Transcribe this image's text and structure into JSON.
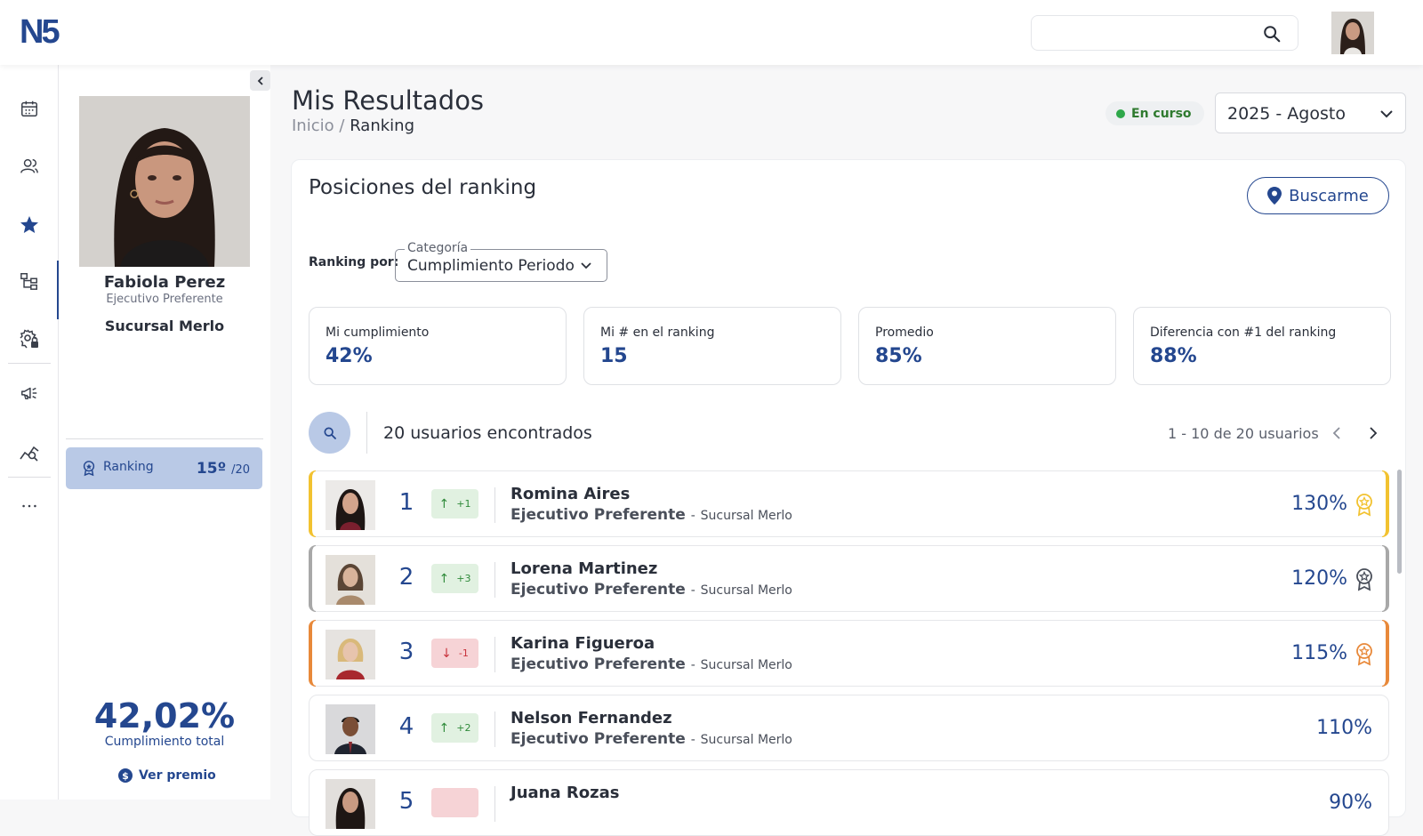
{
  "app": {
    "logo": "N5"
  },
  "header": {
    "search_placeholder": ""
  },
  "profile": {
    "name": "Fabiola Perez",
    "role": "Ejecutivo Preferente",
    "branch": "Sucursal Merlo",
    "ranking_label": "Ranking",
    "ranking_position": "15º",
    "ranking_total": "/20",
    "total_pct": "42,02%",
    "total_label": "Cumplimiento total",
    "prize_link": "Ver premio"
  },
  "sidebar": {
    "icons": [
      "calendar-icon",
      "users-icon",
      "star-icon",
      "org-chart-icon",
      "settings-lock-icon",
      "megaphone-icon",
      "chart-search-icon",
      "more-icon"
    ],
    "active": "star-icon"
  },
  "page": {
    "title": "Mis Resultados",
    "breadcrumb_home": "Inicio",
    "breadcrumb_sep": "/",
    "breadcrumb_current": "Ranking",
    "status": "En curso",
    "period": "2025 - Agosto"
  },
  "card": {
    "title": "Posiciones del ranking",
    "find_me_button": "Buscarme",
    "ranking_by_label": "Ranking por:",
    "category_legend": "Categoría",
    "category_value": "Cumplimiento Periodo",
    "stats": [
      {
        "label": "Mi cumplimiento",
        "value": "42%"
      },
      {
        "label": "Mi # en el ranking",
        "value": "15"
      },
      {
        "label": "Promedio",
        "value": "85%"
      },
      {
        "label": "Diferencia con #1 del ranking",
        "value": "88%"
      }
    ],
    "found_text": "20 usuarios encontrados",
    "pagination": "1 - 10 de 20 usuarios"
  },
  "rows": [
    {
      "rank": "1",
      "delta": "+1",
      "dir": "up",
      "name": "Romina Aires",
      "role": "Ejecutivo Preferente",
      "sep": "-",
      "branch": "Sucursal Merlo",
      "pct": "130%",
      "medal": "gold"
    },
    {
      "rank": "2",
      "delta": "+3",
      "dir": "up",
      "name": "Lorena Martinez",
      "role": "Ejecutivo Preferente",
      "sep": "-",
      "branch": "Sucursal Merlo",
      "pct": "120%",
      "medal": "silver"
    },
    {
      "rank": "3",
      "delta": "-1",
      "dir": "down",
      "name": "Karina Figueroa",
      "role": "Ejecutivo Preferente",
      "sep": "-",
      "branch": "Sucursal Merlo",
      "pct": "115%",
      "medal": "bronze"
    },
    {
      "rank": "4",
      "delta": "+2",
      "dir": "up",
      "name": "Nelson Fernandez",
      "role": "Ejecutivo Preferente",
      "sep": "-",
      "branch": "Sucursal Merlo",
      "pct": "110%",
      "medal": "none"
    },
    {
      "rank": "5",
      "delta": "",
      "dir": "down",
      "name": "Juana Rozas",
      "role": "",
      "sep": "",
      "branch": "",
      "pct": "90%",
      "medal": "none"
    }
  ],
  "colors": {
    "primary": "#24478f",
    "gold": "#f2c230",
    "silver": "#a8a8a8",
    "bronze": "#e8893a",
    "up": "#2f8a3a",
    "down": "#c8343d"
  }
}
